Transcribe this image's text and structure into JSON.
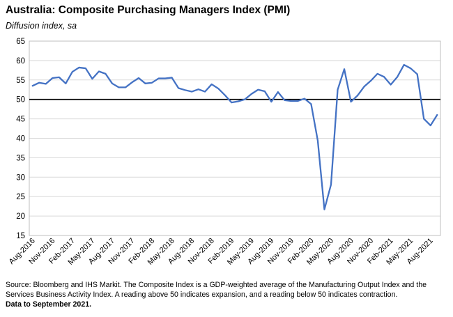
{
  "title": "Australia:  Composite Purchasing Managers Index (PMI)",
  "subtitle": "Diffusion index, sa",
  "source_text": "Source: Bloomberg and IHS Markit. The Composite Index is a GDP-weighted average of the Manufacturing Output Index and the Services Business Activity Index.  A reading above 50 indicates expansion, and a reading below 50 indicates contraction.",
  "note": "Data to September 2021.",
  "chart_data": {
    "type": "line",
    "title": "Australia:  Composite Purchasing Managers Index (PMI)",
    "ylabel": "Diffusion index, sa",
    "ylim": [
      15,
      65
    ],
    "yticks": [
      15,
      20,
      25,
      30,
      35,
      40,
      45,
      50,
      55,
      60,
      65
    ],
    "grid": true,
    "reference_line": 50,
    "line_color": "#4472C4",
    "x_tick_labels": [
      "Aug-2016",
      "Nov-2016",
      "Feb-2017",
      "May-2017",
      "Aug-2017",
      "Nov-2017",
      "Feb-2018",
      "May-2018",
      "Aug-2018",
      "Nov-2018",
      "Feb-2019",
      "May-2019",
      "Aug-2019",
      "Nov-2019",
      "Feb-2020",
      "May-2020",
      "Aug-2020",
      "Nov-2020",
      "Feb-2021",
      "May-2021",
      "Aug-2021"
    ],
    "x": [
      "Aug-2016",
      "Sep-2016",
      "Oct-2016",
      "Nov-2016",
      "Dec-2016",
      "Jan-2017",
      "Feb-2017",
      "Mar-2017",
      "Apr-2017",
      "May-2017",
      "Jun-2017",
      "Jul-2017",
      "Aug-2017",
      "Sep-2017",
      "Oct-2017",
      "Nov-2017",
      "Dec-2017",
      "Jan-2018",
      "Feb-2018",
      "Mar-2018",
      "Apr-2018",
      "May-2018",
      "Jun-2018",
      "Jul-2018",
      "Aug-2018",
      "Sep-2018",
      "Oct-2018",
      "Nov-2018",
      "Dec-2018",
      "Jan-2019",
      "Feb-2019",
      "Mar-2019",
      "Apr-2019",
      "May-2019",
      "Jun-2019",
      "Jul-2019",
      "Aug-2019",
      "Sep-2019",
      "Oct-2019",
      "Nov-2019",
      "Dec-2019",
      "Jan-2020",
      "Feb-2020",
      "Mar-2020",
      "Apr-2020",
      "May-2020",
      "Jun-2020",
      "Jul-2020",
      "Aug-2020",
      "Sep-2020",
      "Oct-2020",
      "Nov-2020",
      "Dec-2020",
      "Jan-2021",
      "Feb-2021",
      "Mar-2021",
      "Apr-2021",
      "May-2021",
      "Jun-2021",
      "Jul-2021",
      "Aug-2021",
      "Sep-2021"
    ],
    "series": [
      {
        "values": [
          53.5,
          54.3,
          54.0,
          55.5,
          55.7,
          54.1,
          57.1,
          58.2,
          58.0,
          55.3,
          57.2,
          56.6,
          54.1,
          53.1,
          53.1,
          54.4,
          55.5,
          54.1,
          54.3,
          55.4,
          55.4,
          55.6,
          52.9,
          52.4,
          52.0,
          52.6,
          52.0,
          53.9,
          52.8,
          51.1,
          49.2,
          49.5,
          50.0,
          51.4,
          52.5,
          52.1,
          49.4,
          51.9,
          49.8,
          49.6,
          49.6,
          50.2,
          48.8,
          39.4,
          21.7,
          28.1,
          52.5,
          57.8,
          49.4,
          51.0,
          53.3,
          54.8,
          56.6,
          55.8,
          53.8,
          55.8,
          58.9,
          58.0,
          56.5,
          45.0,
          43.3,
          46.0
        ]
      }
    ]
  }
}
